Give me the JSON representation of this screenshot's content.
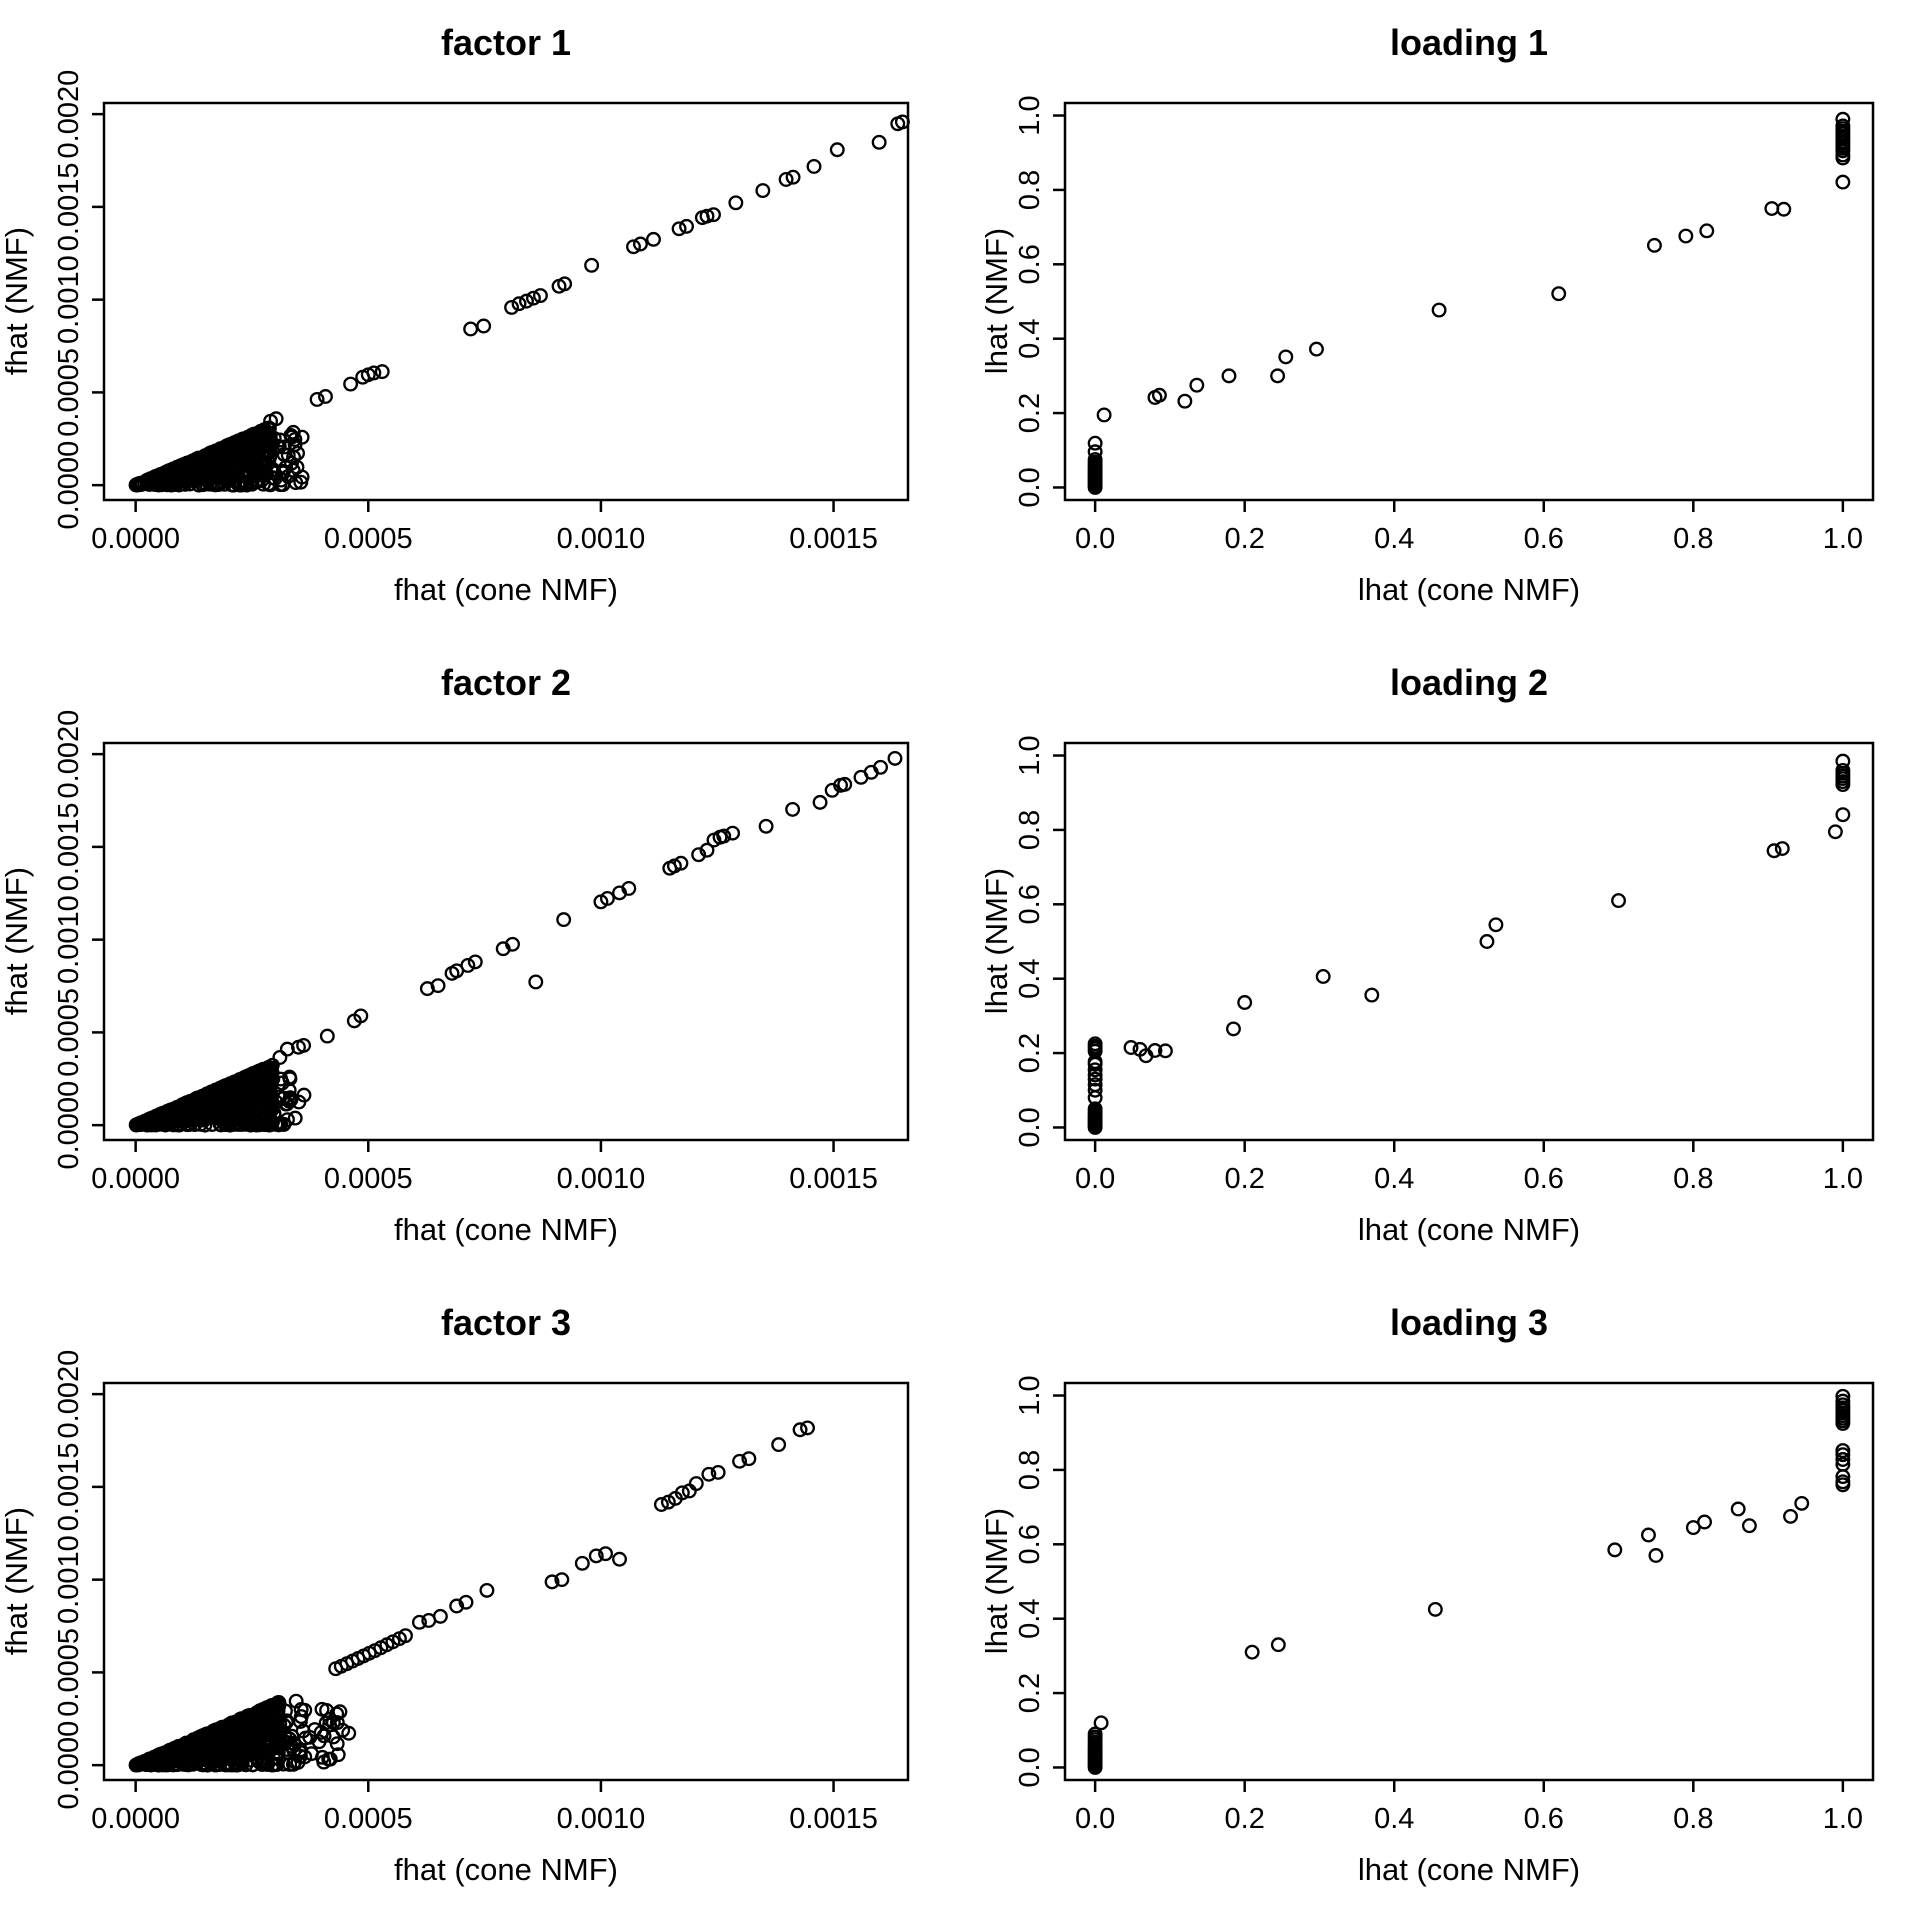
{
  "figure": {
    "background": "#ffffff",
    "point_color": "#000000",
    "marker": "open-circle",
    "marker_radius": 6.3,
    "marker_stroke_width": 2.3
  },
  "chart_data": [
    {
      "type": "scatter",
      "title": "factor 1",
      "xlabel": "fhat (cone NMF)",
      "ylabel": "fhat (NMF)",
      "xlim": [
        -6.8e-05,
        0.00166
      ],
      "ylim": [
        -8e-05,
        0.00206
      ],
      "x_tick_values": [
        0,
        0.0005,
        0.001,
        0.0015
      ],
      "x_tick_labels": [
        "0.0000",
        "0.0005",
        "0.0010",
        "0.0015"
      ],
      "y_tick_values": [
        0,
        0.0005,
        0.001,
        0.0015,
        0.002
      ],
      "y_tick_labels": [
        "0.0000",
        "0.0005",
        "0.0010",
        "0.0015",
        "0.0020"
      ],
      "points": [
        [
          0.00029,
          0.000345
        ],
        [
          0.000302,
          0.000358
        ],
        [
          0.00039,
          0.000462
        ],
        [
          0.000408,
          0.000478
        ],
        [
          0.000462,
          0.000545
        ],
        [
          0.000488,
          0.000582
        ],
        [
          0.0005,
          0.000595
        ],
        [
          0.000512,
          0.000605
        ],
        [
          0.00053,
          0.000612
        ],
        [
          0.00072,
          0.000842
        ],
        [
          0.000748,
          0.000858
        ],
        [
          0.000808,
          0.000958
        ],
        [
          0.000824,
          0.000978
        ],
        [
          0.00084,
          0.000992
        ],
        [
          0.000855,
          0.001008
        ],
        [
          0.00087,
          0.001022
        ],
        [
          0.00091,
          0.001072
        ],
        [
          0.000922,
          0.001085
        ],
        [
          0.00098,
          0.001185
        ],
        [
          0.00107,
          0.001285
        ],
        [
          0.001085,
          0.0013
        ],
        [
          0.001113,
          0.001325
        ],
        [
          0.001168,
          0.001382
        ],
        [
          0.001184,
          0.001395
        ],
        [
          0.001218,
          0.001442
        ],
        [
          0.001228,
          0.00145
        ],
        [
          0.001242,
          0.001458
        ],
        [
          0.00129,
          0.001522
        ],
        [
          0.001348,
          0.001588
        ],
        [
          0.001398,
          0.001648
        ],
        [
          0.001413,
          0.00166
        ],
        [
          0.001458,
          0.001718
        ],
        [
          0.001508,
          0.001808
        ],
        [
          0.001598,
          0.001848
        ],
        [
          0.001638,
          0.001948
        ],
        [
          0.001648,
          0.001958
        ],
        [
          0.000305,
          0.00021
        ],
        [
          0.000328,
          0.000162
        ],
        [
          0.000348,
          0.000172
        ],
        [
          0.000298,
          0.000252
        ]
      ],
      "dense_cluster": {
        "description": "solid over-plotted wedge of points rising from the origin",
        "x_max": 0.00029,
        "slope_max": 1.08,
        "n_dense": 650,
        "n_scatter": 95,
        "n_floor": 45,
        "scatter_x_max": 0.00036,
        "seed": 11
      }
    },
    {
      "type": "scatter",
      "title": "loading 1",
      "xlabel": "lhat (cone NMF)",
      "ylabel": "lhat (NMF)",
      "xlim": [
        -0.0403,
        1.0403
      ],
      "ylim": [
        -0.0337,
        1.0337
      ],
      "x_tick_values": [
        0,
        0.2,
        0.4,
        0.6,
        0.8,
        1.0
      ],
      "x_tick_labels": [
        "0.0",
        "0.2",
        "0.4",
        "0.6",
        "0.8",
        "1.0"
      ],
      "y_tick_values": [
        0,
        0.2,
        0.4,
        0.6,
        0.8,
        1.0
      ],
      "y_tick_labels": [
        "0.0",
        "0.2",
        "0.4",
        "0.6",
        "0.8",
        "1.0"
      ],
      "points": [
        [
          0.012,
          0.195
        ],
        [
          0.08,
          0.242
        ],
        [
          0.086,
          0.248
        ],
        [
          0.12,
          0.232
        ],
        [
          0.136,
          0.275
        ],
        [
          0.179,
          0.3
        ],
        [
          0.244,
          0.3
        ],
        [
          0.255,
          0.351
        ],
        [
          0.296,
          0.372
        ],
        [
          0.46,
          0.477
        ],
        [
          0.62,
          0.521
        ],
        [
          0.748,
          0.651
        ],
        [
          0.79,
          0.676
        ],
        [
          0.818,
          0.69
        ],
        [
          0.905,
          0.75
        ],
        [
          0.921,
          0.748
        ]
      ],
      "columns": [
        {
          "x": 0.0,
          "ys": [
            0,
            0.004,
            0.008,
            0.012,
            0.016,
            0.02,
            0.024,
            0.028,
            0.032,
            0.036,
            0.04,
            0.044,
            0.048,
            0.052,
            0.057,
            0.062,
            0.068,
            0.075,
            0.096,
            0.119
          ]
        },
        {
          "x": 1.0,
          "ys": [
            0.821,
            0.886,
            0.894,
            0.905,
            0.912,
            0.918,
            0.925,
            0.931,
            0.938,
            0.944,
            0.951,
            0.958,
            0.965,
            0.972,
            0.99
          ]
        }
      ]
    },
    {
      "type": "scatter",
      "title": "factor 2",
      "xlabel": "fhat (cone NMF)",
      "ylabel": "fhat (NMF)",
      "xlim": [
        -6.8e-05,
        0.00166
      ],
      "ylim": [
        -8e-05,
        0.00206
      ],
      "x_tick_values": [
        0,
        0.0005,
        0.001,
        0.0015
      ],
      "x_tick_labels": [
        "0.0000",
        "0.0005",
        "0.0010",
        "0.0015"
      ],
      "y_tick_values": [
        0,
        0.0005,
        0.001,
        0.0015,
        0.002
      ],
      "y_tick_labels": [
        "0.0000",
        "0.0005",
        "0.0010",
        "0.0015",
        "0.0020"
      ],
      "points": [
        [
          0.00031,
          0.000365
        ],
        [
          0.000326,
          0.00041
        ],
        [
          0.00035,
          0.00042
        ],
        [
          0.000361,
          0.00043
        ],
        [
          0.000412,
          0.00048
        ],
        [
          0.00047,
          0.000562
        ],
        [
          0.000484,
          0.000589
        ],
        [
          0.000627,
          0.000736
        ],
        [
          0.00065,
          0.000752
        ],
        [
          0.00068,
          0.000818
        ],
        [
          0.00069,
          0.000832
        ],
        [
          0.000714,
          0.000861
        ],
        [
          0.00073,
          0.00088
        ],
        [
          0.00079,
          0.000951
        ],
        [
          0.00081,
          0.000975
        ],
        [
          0.00086,
          0.000772
        ],
        [
          0.00092,
          0.001108
        ],
        [
          0.001,
          0.001204
        ],
        [
          0.001014,
          0.001222
        ],
        [
          0.00104,
          0.001252
        ],
        [
          0.00106,
          0.001276
        ],
        [
          0.001148,
          0.001385
        ],
        [
          0.001158,
          0.001397
        ],
        [
          0.001172,
          0.001412
        ],
        [
          0.00121,
          0.001458
        ],
        [
          0.001228,
          0.001482
        ],
        [
          0.001243,
          0.001537
        ],
        [
          0.001256,
          0.001552
        ],
        [
          0.001264,
          0.001558
        ],
        [
          0.001283,
          0.001574
        ],
        [
          0.001355,
          0.001611
        ],
        [
          0.001412,
          0.001702
        ],
        [
          0.001471,
          0.00174
        ],
        [
          0.001497,
          0.001805
        ],
        [
          0.001515,
          0.001832
        ],
        [
          0.001524,
          0.001837
        ],
        [
          0.001559,
          0.001875
        ],
        [
          0.001581,
          0.001902
        ],
        [
          0.001601,
          0.001929
        ],
        [
          0.001632,
          0.001977
        ],
        [
          0.00029,
          0.000172
        ],
        [
          0.00031,
          0.000152
        ],
        [
          0.00033,
          0.000188
        ],
        [
          0.00026,
          0.000128
        ],
        [
          0.000242,
          9e-05
        ]
      ],
      "dense_cluster": {
        "description": "solid over-plotted wedge of points rising from the origin",
        "x_max": 0.000295,
        "slope_max": 1.1,
        "n_dense": 640,
        "n_scatter": 90,
        "n_floor": 45,
        "scatter_x_max": 0.00037,
        "seed": 23
      }
    },
    {
      "type": "scatter",
      "title": "loading 2",
      "xlabel": "lhat (cone NMF)",
      "ylabel": "lhat (NMF)",
      "xlim": [
        -0.0403,
        1.0403
      ],
      "ylim": [
        -0.0337,
        1.0337
      ],
      "x_tick_values": [
        0,
        0.2,
        0.4,
        0.6,
        0.8,
        1.0
      ],
      "x_tick_labels": [
        "0.0",
        "0.2",
        "0.4",
        "0.6",
        "0.8",
        "1.0"
      ],
      "y_tick_values": [
        0,
        0.2,
        0.4,
        0.6,
        0.8,
        1.0
      ],
      "y_tick_labels": [
        "0.0",
        "0.2",
        "0.4",
        "0.6",
        "0.8",
        "1.0"
      ],
      "points": [
        [
          0.048,
          0.215
        ],
        [
          0.06,
          0.21
        ],
        [
          0.068,
          0.193
        ],
        [
          0.08,
          0.207
        ],
        [
          0.094,
          0.206
        ],
        [
          0.185,
          0.265
        ],
        [
          0.2,
          0.336
        ],
        [
          0.305,
          0.406
        ],
        [
          0.37,
          0.356
        ],
        [
          0.524,
          0.5
        ],
        [
          0.536,
          0.545
        ],
        [
          0.7,
          0.61
        ],
        [
          0.908,
          0.744
        ],
        [
          0.919,
          0.75
        ],
        [
          0.99,
          0.795
        ],
        [
          1.0,
          0.841
        ]
      ],
      "columns": [
        {
          "x": 0.0,
          "ys": [
            0,
            0.004,
            0.008,
            0.012,
            0.016,
            0.02,
            0.024,
            0.028,
            0.033,
            0.038,
            0.044,
            0.05,
            0.08,
            0.1,
            0.115,
            0.13,
            0.141,
            0.155,
            0.17,
            0.177,
            0.205,
            0.212,
            0.218,
            0.225
          ]
        },
        {
          "x": 1.0,
          "ys": [
            0.922,
            0.93,
            0.938,
            0.945,
            0.952,
            0.96,
            0.985
          ]
        }
      ]
    },
    {
      "type": "scatter",
      "title": "factor 3",
      "xlabel": "fhat (cone NMF)",
      "ylabel": "fhat (NMF)",
      "xlim": [
        -6.8e-05,
        0.00166
      ],
      "ylim": [
        -8e-05,
        0.00206
      ],
      "x_tick_values": [
        0,
        0.0005,
        0.001,
        0.0015
      ],
      "x_tick_labels": [
        "0.0000",
        "0.0005",
        "0.0010",
        "0.0015"
      ],
      "y_tick_values": [
        0,
        0.0005,
        0.001,
        0.0015,
        0.002
      ],
      "y_tick_labels": [
        "0.0000",
        "0.0005",
        "0.0010",
        "0.0015",
        "0.0020"
      ],
      "points": [
        [
          0.00043,
          0.00052
        ],
        [
          0.000442,
          0.000533
        ],
        [
          0.000454,
          0.000547
        ],
        [
          0.000466,
          0.000561
        ],
        [
          0.000478,
          0.000575
        ],
        [
          0.00049,
          0.000589
        ],
        [
          0.000502,
          0.000603
        ],
        [
          0.000514,
          0.000617
        ],
        [
          0.000527,
          0.000633
        ],
        [
          0.00054,
          0.000649
        ],
        [
          0.000553,
          0.000665
        ],
        [
          0.000567,
          0.000682
        ],
        [
          0.00058,
          0.000698
        ],
        [
          0.00061,
          0.00077
        ],
        [
          0.00063,
          0.00078
        ],
        [
          0.000655,
          0.000802
        ],
        [
          0.00069,
          0.000858
        ],
        [
          0.00071,
          0.000878
        ],
        [
          0.000755,
          0.000942
        ],
        [
          0.000895,
          0.000988
        ],
        [
          0.000916,
          0.001
        ],
        [
          0.00096,
          0.001088
        ],
        [
          0.00099,
          0.001128
        ],
        [
          0.00101,
          0.00114
        ],
        [
          0.00104,
          0.00111
        ],
        [
          0.00113,
          0.001405
        ],
        [
          0.001145,
          0.001418
        ],
        [
          0.00116,
          0.001438
        ],
        [
          0.001175,
          0.001468
        ],
        [
          0.00119,
          0.001478
        ],
        [
          0.001205,
          0.001518
        ],
        [
          0.001232,
          0.001568
        ],
        [
          0.001252,
          0.001578
        ],
        [
          0.001298,
          0.001638
        ],
        [
          0.001318,
          0.001652
        ],
        [
          0.001382,
          0.001728
        ],
        [
          0.001428,
          0.001808
        ],
        [
          0.001444,
          0.001818
        ],
        [
          0.000322,
          0.000292
        ],
        [
          0.000345,
          0.000345
        ],
        [
          0.000356,
          0.000262
        ],
        [
          0.000385,
          0.000192
        ],
        [
          0.000405,
          0.000158
        ],
        [
          0.000425,
          0.000152
        ],
        [
          0.000335,
          0.000102
        ],
        [
          0.000378,
          6.2e-05
        ],
        [
          0.000415,
          3.2e-05
        ],
        [
          0.000302,
          4.2e-05
        ],
        [
          0.000445,
          0.000188
        ],
        [
          0.000458,
          0.000172
        ]
      ],
      "dense_cluster": {
        "description": "solid over-plotted wedge of points rising from the origin",
        "x_max": 0.00031,
        "slope_max": 1.1,
        "n_dense": 680,
        "n_scatter": 130,
        "n_floor": 55,
        "scatter_x_max": 0.00044,
        "seed": 37
      }
    },
    {
      "type": "scatter",
      "title": "loading 3",
      "xlabel": "lhat (cone NMF)",
      "ylabel": "lhat (NMF)",
      "xlim": [
        -0.0403,
        1.0403
      ],
      "ylim": [
        -0.0337,
        1.0337
      ],
      "x_tick_values": [
        0,
        0.2,
        0.4,
        0.6,
        0.8,
        1.0
      ],
      "x_tick_labels": [
        "0.0",
        "0.2",
        "0.4",
        "0.6",
        "0.8",
        "1.0"
      ],
      "y_tick_values": [
        0,
        0.2,
        0.4,
        0.6,
        0.8,
        1.0
      ],
      "y_tick_labels": [
        "0.0",
        "0.2",
        "0.4",
        "0.6",
        "0.8",
        "1.0"
      ],
      "points": [
        [
          0.008,
          0.12
        ],
        [
          0.21,
          0.31
        ],
        [
          0.245,
          0.33
        ],
        [
          0.455,
          0.425
        ],
        [
          0.695,
          0.585
        ],
        [
          0.74,
          0.625
        ],
        [
          0.75,
          0.57
        ],
        [
          0.8,
          0.645
        ],
        [
          0.815,
          0.66
        ],
        [
          0.86,
          0.695
        ],
        [
          0.875,
          0.65
        ],
        [
          0.93,
          0.675
        ],
        [
          0.945,
          0.71
        ]
      ],
      "columns": [
        {
          "x": 0.0,
          "ys": [
            0,
            0.004,
            0.008,
            0.012,
            0.016,
            0.021,
            0.026,
            0.031,
            0.036,
            0.041,
            0.046,
            0.051,
            0.056,
            0.062,
            0.068,
            0.075,
            0.082,
            0.09
          ]
        },
        {
          "x": 1.0,
          "ys": [
            0.76,
            0.768,
            0.782,
            0.815,
            0.828,
            0.841,
            0.852,
            0.925,
            0.932,
            0.939,
            0.946,
            0.953,
            0.96,
            0.967,
            0.975,
            0.985,
            0.998
          ]
        }
      ]
    }
  ]
}
